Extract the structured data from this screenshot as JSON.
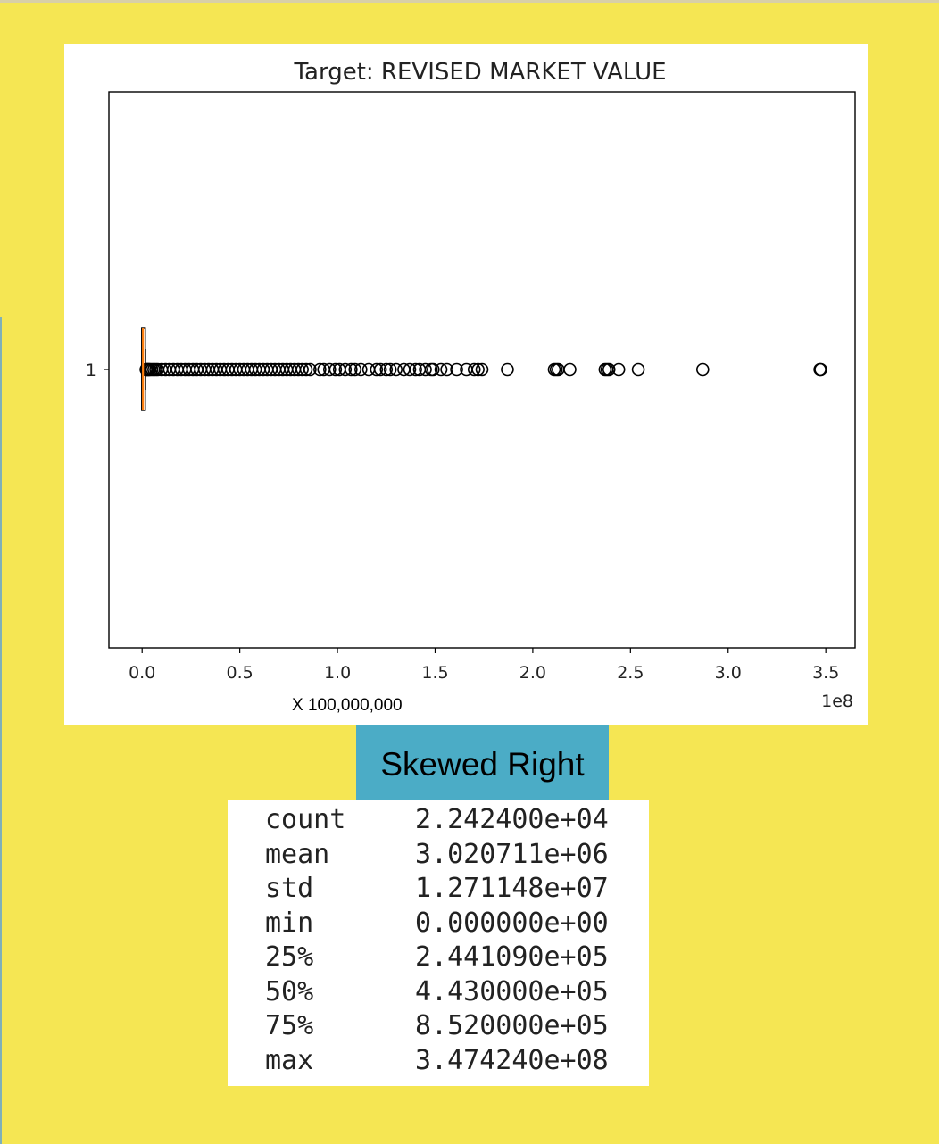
{
  "chart_data": {
    "type": "boxplot",
    "orientation": "horizontal",
    "title": "Target: REVISED MARKET VALUE",
    "xlabel": "",
    "ylabel": "",
    "xlim": [
      -17000000,
      365000000
    ],
    "xticks": [
      0,
      50000000,
      100000000,
      150000000,
      200000000,
      250000000,
      300000000,
      350000000
    ],
    "xtick_labels": [
      "0.0",
      "0.5",
      "1.0",
      "1.5",
      "2.0",
      "2.5",
      "3.0",
      "3.5"
    ],
    "offset_label": "1e8",
    "yticks": [
      "1"
    ],
    "grid": false,
    "box": {
      "min": 0,
      "q1": 244109,
      "median": 443000,
      "q3": 852000,
      "whisker_low": 0,
      "whisker_high": 1763000
    },
    "outliers": [
      2000000,
      2500000,
      3000000,
      3500000,
      4000000,
      5000000,
      6000000,
      7000000,
      8000000,
      10000000,
      12000000,
      14000000,
      16000000,
      18000000,
      20000000,
      22000000,
      24000000,
      26000000,
      28000000,
      30000000,
      32000000,
      34000000,
      36000000,
      38000000,
      40000000,
      42000000,
      44000000,
      46000000,
      48000000,
      50000000,
      52000000,
      54000000,
      56000000,
      58000000,
      60000000,
      62000000,
      64000000,
      66000000,
      68000000,
      70000000,
      72000000,
      74000000,
      76000000,
      78000000,
      80000000,
      82000000,
      84000000,
      86000000,
      91000000,
      93000000,
      96000000,
      99000000,
      101000000,
      104000000,
      107000000,
      109000000,
      112000000,
      116000000,
      120000000,
      122000000,
      125000000,
      127000000,
      130000000,
      134000000,
      137000000,
      140000000,
      142000000,
      145000000,
      148000000,
      149000000,
      153000000,
      156000000,
      161000000,
      166000000,
      170000000,
      172000000,
      174000000,
      187000000,
      211000000,
      212000000,
      213000000,
      219000000,
      237000000,
      238000000,
      239000000,
      244000000,
      254000000,
      287000000,
      347000000,
      347424000
    ],
    "colors": {
      "median": "#ff7f0e",
      "box": "#000000"
    }
  },
  "annotations": {
    "scale_caption": "X 100,000,000",
    "badge": "Skewed Right"
  },
  "summary_stats": [
    {
      "label": "count",
      "value": "2.242400e+04"
    },
    {
      "label": "mean",
      "value": "3.020711e+06"
    },
    {
      "label": "std",
      "value": "1.271148e+07"
    },
    {
      "label": "min",
      "value": "0.000000e+00"
    },
    {
      "label": "25%",
      "value": "2.441090e+05"
    },
    {
      "label": "50%",
      "value": "4.430000e+05"
    },
    {
      "label": "75%",
      "value": "8.520000e+05"
    },
    {
      "label": "max",
      "value": "3.474240e+08"
    }
  ],
  "colors": {
    "background": "#f5e653",
    "badge": "#4bacc6"
  }
}
